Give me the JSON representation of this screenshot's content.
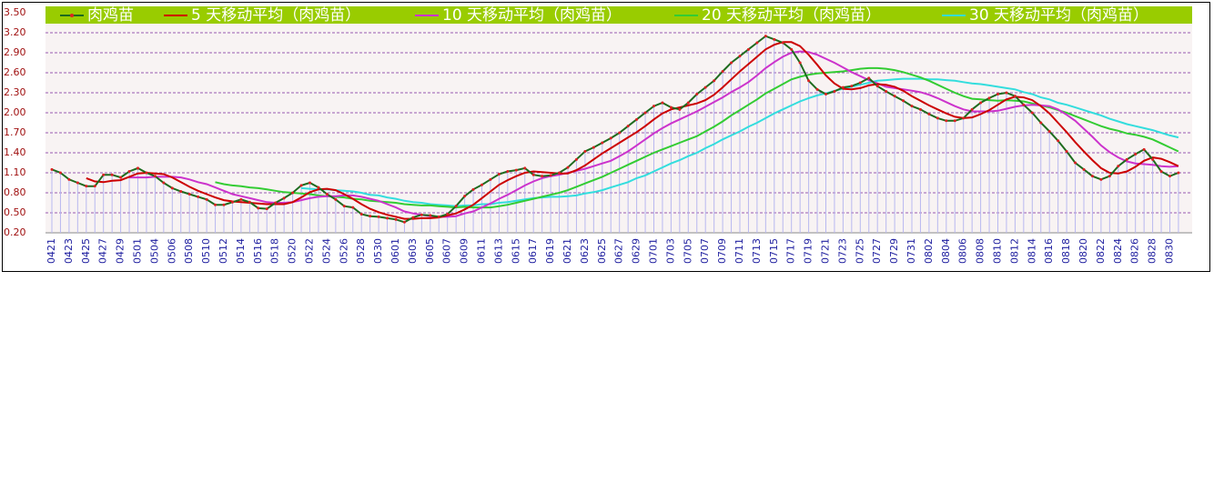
{
  "chart_data": {
    "type": "line",
    "categories": [
      "0421",
      null,
      "0423",
      null,
      "0425",
      null,
      "0427",
      null,
      "0429",
      null,
      "0501",
      null,
      "0504",
      null,
      "0506",
      null,
      "0508",
      null,
      "0510",
      null,
      "0512",
      null,
      "0514",
      null,
      "0516",
      null,
      "0518",
      null,
      "0520",
      null,
      "0522",
      null,
      "0524",
      null,
      "0526",
      null,
      "0528",
      null,
      "0530",
      null,
      "0601",
      null,
      "0603",
      null,
      "0605",
      null,
      "0607",
      null,
      "0609",
      null,
      "0611",
      null,
      "0613",
      null,
      "0615",
      null,
      "0617",
      null,
      "0619",
      null,
      "0621",
      null,
      "0623",
      null,
      "0625",
      null,
      "0627",
      null,
      "0629",
      null,
      "0701",
      null,
      "0703",
      null,
      "0705",
      null,
      "0707",
      null,
      "0709",
      null,
      "0711",
      null,
      "0713",
      null,
      "0715",
      null,
      "0717",
      null,
      "0719",
      null,
      "0721",
      null,
      "0723",
      null,
      "0725",
      null,
      "0727",
      null,
      "0729",
      null,
      "0731",
      null,
      "0802",
      null,
      "0804",
      null,
      "0806",
      null,
      "0808",
      null,
      "0810",
      null,
      "0812",
      null,
      "0814",
      null,
      "0816",
      null,
      "0818",
      null,
      "0820",
      null,
      "0822",
      null,
      "0824",
      null,
      "0826",
      null,
      "0828",
      null,
      "0830",
      null
    ],
    "series": [
      {
        "name": "肉鸡苗",
        "color": "#1e6b1e",
        "marker_color": "#dd2222",
        "drop_line_color": "#b8b8f0",
        "values": [
          1.15,
          1.1,
          1.0,
          0.95,
          0.9,
          0.9,
          1.07,
          1.07,
          1.03,
          1.12,
          1.17,
          1.1,
          1.05,
          0.95,
          0.87,
          0.82,
          0.78,
          0.74,
          0.7,
          0.62,
          0.62,
          0.66,
          0.7,
          0.66,
          0.57,
          0.56,
          0.65,
          0.72,
          0.8,
          0.91,
          0.95,
          0.88,
          0.78,
          0.7,
          0.6,
          0.58,
          0.48,
          0.45,
          0.44,
          0.42,
          0.4,
          0.36,
          0.43,
          0.47,
          0.46,
          0.44,
          0.48,
          0.6,
          0.75,
          0.85,
          0.92,
          1.0,
          1.08,
          1.12,
          1.14,
          1.17,
          1.07,
          1.05,
          1.06,
          1.1,
          1.18,
          1.3,
          1.42,
          1.48,
          1.55,
          1.62,
          1.7,
          1.8,
          1.9,
          2.0,
          2.1,
          2.15,
          2.08,
          2.05,
          2.15,
          2.28,
          2.38,
          2.48,
          2.62,
          2.75,
          2.85,
          2.95,
          3.05,
          3.15,
          3.1,
          3.05,
          2.95,
          2.75,
          2.48,
          2.35,
          2.28,
          2.32,
          2.38,
          2.4,
          2.45,
          2.52,
          2.4,
          2.32,
          2.25,
          2.18,
          2.1,
          2.05,
          1.98,
          1.92,
          1.88,
          1.88,
          1.92,
          2.05,
          2.15,
          2.22,
          2.28,
          2.3,
          2.25,
          2.12,
          2.0,
          1.85,
          1.72,
          1.58,
          1.42,
          1.25,
          1.15,
          1.05,
          1.0,
          1.05,
          1.2,
          1.3,
          1.38,
          1.45,
          1.3,
          1.12,
          1.05,
          1.1
        ]
      },
      {
        "name": "5 天移动平均（肉鸡苗）",
        "color": "#cc0000",
        "values": [
          null,
          null,
          null,
          null,
          1.02,
          0.97,
          0.96,
          0.98,
          0.99,
          1.04,
          1.09,
          1.1,
          1.09,
          1.08,
          1.03,
          0.96,
          0.89,
          0.83,
          0.78,
          0.73,
          0.69,
          0.67,
          0.66,
          0.65,
          0.64,
          0.63,
          0.63,
          0.63,
          0.66,
          0.73,
          0.81,
          0.85,
          0.86,
          0.84,
          0.78,
          0.71,
          0.63,
          0.56,
          0.51,
          0.47,
          0.44,
          0.41,
          0.41,
          0.42,
          0.42,
          0.43,
          0.46,
          0.49,
          0.55,
          0.62,
          0.72,
          0.82,
          0.92,
          0.99,
          1.05,
          1.1,
          1.12,
          1.11,
          1.1,
          1.09,
          1.09,
          1.14,
          1.21,
          1.3,
          1.39,
          1.47,
          1.55,
          1.63,
          1.71,
          1.8,
          1.9,
          1.99,
          2.05,
          2.08,
          2.11,
          2.14,
          2.19,
          2.27,
          2.38,
          2.5,
          2.62,
          2.73,
          2.84,
          2.95,
          3.02,
          3.06,
          3.06,
          3.0,
          2.87,
          2.72,
          2.56,
          2.44,
          2.36,
          2.35,
          2.37,
          2.41,
          2.43,
          2.42,
          2.39,
          2.33,
          2.25,
          2.18,
          2.11,
          2.05,
          1.99,
          1.94,
          1.92,
          1.93,
          1.98,
          2.04,
          2.12,
          2.2,
          2.24,
          2.23,
          2.19,
          2.1,
          1.99,
          1.85,
          1.71,
          1.56,
          1.42,
          1.29,
          1.17,
          1.1,
          1.09,
          1.12,
          1.19,
          1.28,
          1.33,
          1.31,
          1.26,
          1.2
        ]
      },
      {
        "name": "10 天移动平均（肉鸡苗）",
        "color": "#cc33cc",
        "values": [
          null,
          null,
          null,
          null,
          null,
          null,
          null,
          null,
          null,
          1.03,
          1.03,
          1.03,
          1.04,
          1.04,
          1.04,
          1.03,
          1.0,
          0.96,
          0.93,
          0.88,
          0.83,
          0.78,
          0.75,
          0.72,
          0.69,
          0.66,
          0.65,
          0.65,
          0.66,
          0.69,
          0.72,
          0.74,
          0.75,
          0.75,
          0.76,
          0.76,
          0.74,
          0.71,
          0.68,
          0.63,
          0.58,
          0.52,
          0.49,
          0.47,
          0.45,
          0.44,
          0.44,
          0.45,
          0.49,
          0.52,
          0.58,
          0.64,
          0.71,
          0.77,
          0.84,
          0.91,
          0.97,
          1.02,
          1.05,
          1.07,
          1.1,
          1.13,
          1.16,
          1.2,
          1.24,
          1.28,
          1.35,
          1.42,
          1.51,
          1.6,
          1.69,
          1.77,
          1.84,
          1.9,
          1.96,
          2.02,
          2.09,
          2.16,
          2.23,
          2.31,
          2.38,
          2.46,
          2.56,
          2.67,
          2.76,
          2.84,
          2.9,
          2.92,
          2.91,
          2.87,
          2.81,
          2.75,
          2.68,
          2.61,
          2.55,
          2.49,
          2.44,
          2.39,
          2.37,
          2.35,
          2.33,
          2.31,
          2.27,
          2.22,
          2.16,
          2.1,
          2.05,
          2.02,
          2.02,
          2.02,
          2.03,
          2.06,
          2.09,
          2.11,
          2.12,
          2.11,
          2.1,
          2.05,
          1.97,
          1.88,
          1.76,
          1.64,
          1.51,
          1.41,
          1.33,
          1.27,
          1.24,
          1.23,
          1.22,
          1.2,
          1.19,
          1.2
        ]
      },
      {
        "name": "20 天移动平均（肉鸡苗）",
        "color": "#33cc33",
        "values": [
          null,
          null,
          null,
          null,
          null,
          null,
          null,
          null,
          null,
          null,
          null,
          null,
          null,
          null,
          null,
          null,
          null,
          null,
          null,
          0.96,
          0.93,
          0.91,
          0.9,
          0.88,
          0.87,
          0.85,
          0.83,
          0.81,
          0.8,
          0.79,
          0.78,
          0.76,
          0.75,
          0.74,
          0.73,
          0.71,
          0.7,
          0.68,
          0.67,
          0.66,
          0.65,
          0.63,
          0.62,
          0.61,
          0.61,
          0.6,
          0.59,
          0.58,
          0.59,
          0.58,
          0.58,
          0.58,
          0.6,
          0.62,
          0.65,
          0.68,
          0.71,
          0.74,
          0.77,
          0.8,
          0.84,
          0.89,
          0.94,
          0.99,
          1.04,
          1.1,
          1.16,
          1.22,
          1.28,
          1.34,
          1.4,
          1.45,
          1.5,
          1.55,
          1.6,
          1.65,
          1.72,
          1.79,
          1.87,
          1.96,
          2.04,
          2.12,
          2.2,
          2.29,
          2.36,
          2.43,
          2.5,
          2.54,
          2.57,
          2.59,
          2.6,
          2.61,
          2.62,
          2.64,
          2.66,
          2.67,
          2.67,
          2.66,
          2.64,
          2.61,
          2.57,
          2.53,
          2.48,
          2.42,
          2.36,
          2.3,
          2.25,
          2.21,
          2.2,
          2.19,
          2.18,
          2.19,
          2.18,
          2.17,
          2.14,
          2.11,
          2.08,
          2.04,
          2.0,
          1.95,
          1.9,
          1.85,
          1.8,
          1.76,
          1.73,
          1.69,
          1.67,
          1.64,
          1.6,
          1.54,
          1.48,
          1.42
        ]
      },
      {
        "name": "30 天移动平均（肉鸡苗）",
        "color": "#33dddd",
        "values": [
          null,
          null,
          null,
          null,
          null,
          null,
          null,
          null,
          null,
          null,
          null,
          null,
          null,
          null,
          null,
          null,
          null,
          null,
          null,
          null,
          null,
          null,
          null,
          null,
          null,
          null,
          null,
          null,
          null,
          0.87,
          0.86,
          0.85,
          0.85,
          0.84,
          0.83,
          0.82,
          0.8,
          0.77,
          0.76,
          0.73,
          0.71,
          0.68,
          0.66,
          0.65,
          0.63,
          0.62,
          0.61,
          0.6,
          0.61,
          0.61,
          0.63,
          0.63,
          0.65,
          0.66,
          0.68,
          0.7,
          0.72,
          0.73,
          0.74,
          0.74,
          0.75,
          0.76,
          0.79,
          0.81,
          0.84,
          0.88,
          0.92,
          0.96,
          1.02,
          1.06,
          1.12,
          1.18,
          1.24,
          1.29,
          1.35,
          1.4,
          1.47,
          1.53,
          1.6,
          1.66,
          1.72,
          1.79,
          1.85,
          1.92,
          1.99,
          2.05,
          2.11,
          2.17,
          2.22,
          2.26,
          2.29,
          2.33,
          2.36,
          2.39,
          2.42,
          2.45,
          2.48,
          2.49,
          2.5,
          2.51,
          2.51,
          2.51,
          2.5,
          2.5,
          2.49,
          2.48,
          2.46,
          2.44,
          2.43,
          2.41,
          2.39,
          2.37,
          2.35,
          2.31,
          2.28,
          2.23,
          2.2,
          2.15,
          2.12,
          2.08,
          2.04,
          2.0,
          1.96,
          1.91,
          1.87,
          1.83,
          1.8,
          1.77,
          1.74,
          1.7,
          1.66,
          1.63
        ]
      }
    ],
    "ylim": [
      0.2,
      3.5
    ],
    "yticks": [
      {
        "value": 0.2,
        "label": "0.20"
      },
      {
        "value": 0.5,
        "label": "0.50"
      },
      {
        "value": 0.8,
        "label": "0.80"
      },
      {
        "value": 1.1,
        "label": "1.10"
      },
      {
        "value": 1.4,
        "label": "1.40"
      },
      {
        "value": 1.7,
        "label": "1.70"
      },
      {
        "value": 2.0,
        "label": "2.00"
      },
      {
        "value": 2.3,
        "label": "2.30"
      },
      {
        "value": 2.6,
        "label": "2.60"
      },
      {
        "value": 2.9,
        "label": "2.90"
      },
      {
        "value": 3.2,
        "label": "3.20"
      },
      {
        "value": 3.5,
        "label": "3.50"
      }
    ],
    "grid": true,
    "grid_color": "#7a2a9a",
    "legend": "top",
    "legend_background": "#99cc00",
    "background": "#f8f3f3",
    "ytick_color": "#a01010",
    "xtick_color": "#2020a0"
  }
}
